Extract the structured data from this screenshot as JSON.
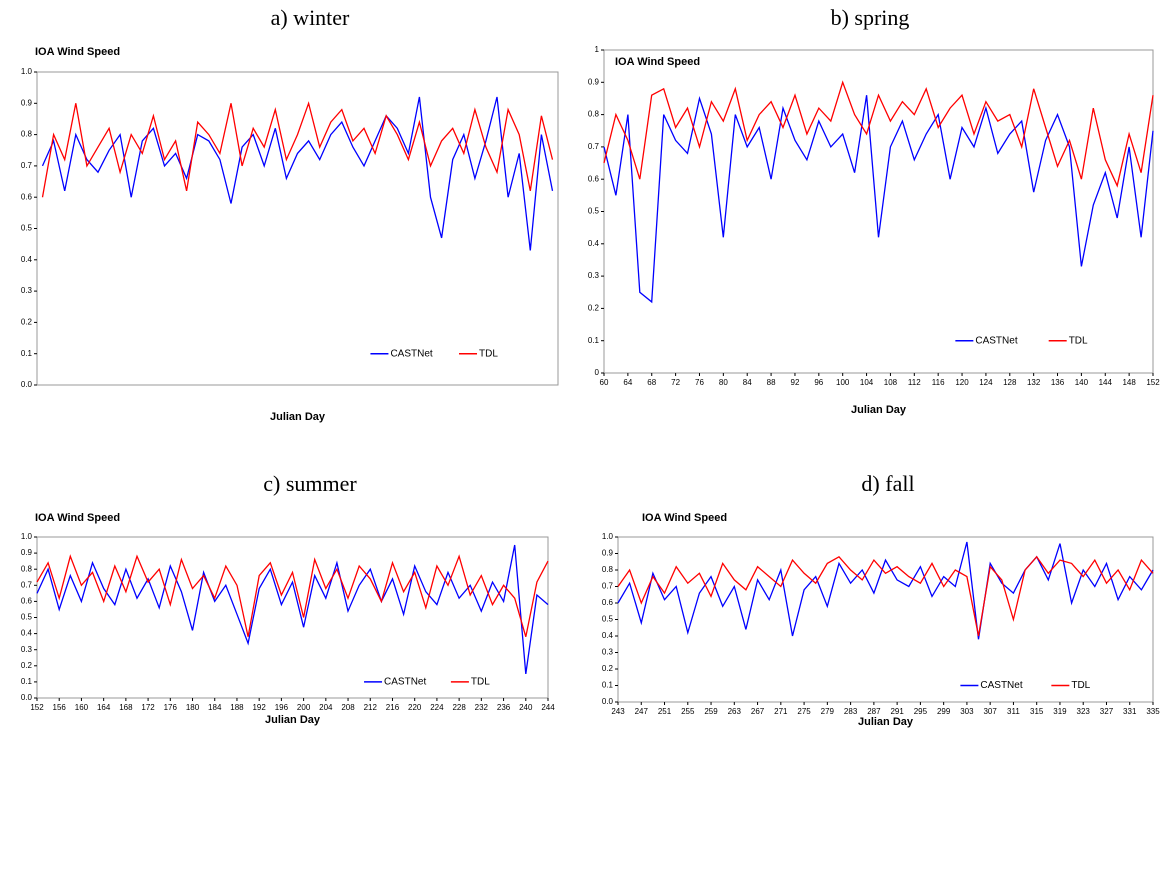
{
  "chart_data": [
    {
      "type": "line",
      "caption": "a) winter",
      "title": "IOA Wind Speed",
      "x_label": "Julian Day",
      "ylim": [
        0,
        1
      ],
      "yticks": [
        {
          "value": 0,
          "label": "0.0"
        },
        0.1,
        0.2,
        0.3,
        0.4,
        0.5,
        0.6,
        0.7,
        0.8,
        0.9,
        {
          "value": 1,
          "label": "1.0"
        }
      ],
      "legend": "lower right",
      "grid": false,
      "series": [
        {
          "name": "CASTNet",
          "color": "#0000ff",
          "values": [
            0.7,
            0.78,
            0.62,
            0.8,
            0.72,
            0.68,
            0.75,
            0.8,
            0.6,
            0.78,
            0.82,
            0.7,
            0.74,
            0.66,
            0.8,
            0.78,
            0.72,
            0.58,
            0.76,
            0.8,
            0.7,
            0.82,
            0.66,
            0.74,
            0.78,
            0.72,
            0.8,
            0.84,
            0.76,
            0.7,
            0.78,
            0.86,
            0.82,
            0.74,
            0.92,
            0.6,
            0.47,
            0.72,
            0.8,
            0.66,
            0.78,
            0.92,
            0.6,
            0.74,
            0.43,
            0.8,
            0.62
          ]
        },
        {
          "name": "TDL",
          "color": "#ff0000",
          "values": [
            0.6,
            0.8,
            0.72,
            0.9,
            0.7,
            0.76,
            0.82,
            0.68,
            0.8,
            0.74,
            0.86,
            0.72,
            0.78,
            0.62,
            0.84,
            0.8,
            0.74,
            0.9,
            0.7,
            0.82,
            0.76,
            0.88,
            0.72,
            0.8,
            0.9,
            0.76,
            0.84,
            0.88,
            0.78,
            0.82,
            0.74,
            0.86,
            0.8,
            0.72,
            0.84,
            0.7,
            0.78,
            0.82,
            0.74,
            0.88,
            0.76,
            0.68,
            0.88,
            0.8,
            0.62,
            0.86,
            0.72
          ]
        }
      ]
    },
    {
      "type": "line",
      "caption": "b) spring",
      "title": "IOA Wind Speed",
      "x_label": "Julian Day",
      "ylim": [
        0,
        1
      ],
      "yticks": [
        0,
        0.1,
        0.2,
        0.3,
        0.4,
        0.5,
        0.6,
        0.7,
        0.8,
        0.9,
        1
      ],
      "xlim": [
        60,
        152
      ],
      "xticks": [
        60,
        64,
        68,
        72,
        76,
        80,
        84,
        88,
        92,
        96,
        100,
        104,
        108,
        112,
        116,
        120,
        124,
        128,
        132,
        136,
        140,
        144,
        148,
        152
      ],
      "legend": "lower right",
      "grid": false,
      "x": [
        60,
        62,
        64,
        66,
        68,
        70,
        72,
        74,
        76,
        78,
        80,
        82,
        84,
        86,
        88,
        90,
        92,
        94,
        96,
        98,
        100,
        102,
        104,
        106,
        108,
        110,
        112,
        114,
        116,
        118,
        120,
        122,
        124,
        126,
        128,
        130,
        132,
        134,
        136,
        138,
        140,
        142,
        144,
        146,
        148,
        150,
        152
      ],
      "series": [
        {
          "name": "CASTNet",
          "color": "#0000ff",
          "values": [
            0.7,
            0.55,
            0.8,
            0.25,
            0.22,
            0.8,
            0.72,
            0.68,
            0.85,
            0.74,
            0.42,
            0.8,
            0.7,
            0.76,
            0.6,
            0.82,
            0.72,
            0.66,
            0.78,
            0.7,
            0.74,
            0.62,
            0.86,
            0.42,
            0.7,
            0.78,
            0.66,
            0.74,
            0.8,
            0.6,
            0.76,
            0.7,
            0.82,
            0.68,
            0.74,
            0.78,
            0.56,
            0.72,
            0.8,
            0.7,
            0.33,
            0.52,
            0.62,
            0.48,
            0.7,
            0.42,
            0.75
          ]
        },
        {
          "name": "TDL",
          "color": "#ff0000",
          "values": [
            0.65,
            0.8,
            0.72,
            0.6,
            0.86,
            0.88,
            0.76,
            0.82,
            0.7,
            0.84,
            0.78,
            0.88,
            0.72,
            0.8,
            0.84,
            0.76,
            0.86,
            0.74,
            0.82,
            0.78,
            0.9,
            0.8,
            0.74,
            0.86,
            0.78,
            0.84,
            0.8,
            0.88,
            0.76,
            0.82,
            0.86,
            0.74,
            0.84,
            0.78,
            0.8,
            0.7,
            0.88,
            0.76,
            0.64,
            0.72,
            0.6,
            0.82,
            0.66,
            0.58,
            0.74,
            0.62,
            0.86
          ]
        }
      ]
    },
    {
      "type": "line",
      "caption": "c) summer",
      "title": "IOA Wind Speed",
      "x_label": "Julian Day",
      "ylim": [
        0,
        1
      ],
      "yticks": [
        {
          "value": 0,
          "label": "0.0"
        },
        0.1,
        0.2,
        0.3,
        0.4,
        0.5,
        0.6,
        0.7,
        0.8,
        0.9,
        {
          "value": 1,
          "label": "1.0"
        }
      ],
      "xlim": [
        152,
        244
      ],
      "xticks": [
        152,
        156,
        160,
        164,
        168,
        172,
        176,
        180,
        184,
        188,
        192,
        196,
        200,
        204,
        208,
        212,
        216,
        220,
        224,
        228,
        232,
        236,
        240,
        244
      ],
      "legend": "lower right",
      "grid": false,
      "x": [
        152,
        154,
        156,
        158,
        160,
        162,
        164,
        166,
        168,
        170,
        172,
        174,
        176,
        178,
        180,
        182,
        184,
        186,
        188,
        190,
        192,
        194,
        196,
        198,
        200,
        202,
        204,
        206,
        208,
        210,
        212,
        214,
        216,
        218,
        220,
        222,
        224,
        226,
        228,
        230,
        232,
        234,
        236,
        238,
        240,
        242,
        244
      ],
      "series": [
        {
          "name": "CASTNet",
          "color": "#0000ff",
          "values": [
            0.65,
            0.8,
            0.55,
            0.76,
            0.6,
            0.84,
            0.68,
            0.58,
            0.8,
            0.62,
            0.74,
            0.56,
            0.82,
            0.66,
            0.42,
            0.78,
            0.6,
            0.7,
            0.52,
            0.34,
            0.68,
            0.8,
            0.58,
            0.72,
            0.44,
            0.76,
            0.62,
            0.84,
            0.54,
            0.7,
            0.8,
            0.6,
            0.74,
            0.52,
            0.82,
            0.66,
            0.58,
            0.78,
            0.62,
            0.7,
            0.54,
            0.72,
            0.6,
            0.95,
            0.15,
            0.64,
            0.58
          ]
        },
        {
          "name": "TDL",
          "color": "#ff0000",
          "values": [
            0.72,
            0.84,
            0.62,
            0.88,
            0.7,
            0.78,
            0.6,
            0.82,
            0.66,
            0.88,
            0.72,
            0.8,
            0.58,
            0.86,
            0.68,
            0.76,
            0.62,
            0.82,
            0.7,
            0.38,
            0.76,
            0.84,
            0.64,
            0.78,
            0.5,
            0.86,
            0.68,
            0.8,
            0.62,
            0.82,
            0.74,
            0.6,
            0.84,
            0.66,
            0.78,
            0.56,
            0.82,
            0.7,
            0.88,
            0.64,
            0.76,
            0.58,
            0.7,
            0.62,
            0.38,
            0.72,
            0.85
          ]
        }
      ]
    },
    {
      "type": "line",
      "caption": "d) fall",
      "title": "IOA Wind Speed",
      "x_label": "Julian Day",
      "ylim": [
        0,
        1
      ],
      "yticks": [
        {
          "value": 0,
          "label": "0.0"
        },
        0.1,
        0.2,
        0.3,
        0.4,
        0.5,
        0.6,
        0.7,
        0.8,
        0.9,
        {
          "value": 1,
          "label": "1.0"
        }
      ],
      "xlim": [
        243,
        335
      ],
      "xticks": [
        243,
        247,
        251,
        255,
        259,
        263,
        267,
        271,
        275,
        279,
        283,
        287,
        291,
        295,
        299,
        303,
        307,
        311,
        315,
        319,
        323,
        327,
        331,
        335
      ],
      "legend": "lower right",
      "grid": false,
      "x": [
        243,
        245,
        247,
        249,
        251,
        253,
        255,
        257,
        259,
        261,
        263,
        265,
        267,
        269,
        271,
        273,
        275,
        277,
        279,
        281,
        283,
        285,
        287,
        289,
        291,
        293,
        295,
        297,
        299,
        301,
        303,
        305,
        307,
        309,
        311,
        313,
        315,
        317,
        319,
        321,
        323,
        325,
        327,
        329,
        331,
        333,
        335
      ],
      "series": [
        {
          "name": "CASTNet",
          "color": "#0000ff",
          "values": [
            0.6,
            0.72,
            0.48,
            0.78,
            0.62,
            0.7,
            0.42,
            0.66,
            0.76,
            0.58,
            0.7,
            0.44,
            0.74,
            0.62,
            0.8,
            0.4,
            0.68,
            0.76,
            0.58,
            0.84,
            0.72,
            0.8,
            0.66,
            0.86,
            0.74,
            0.7,
            0.82,
            0.64,
            0.76,
            0.7,
            0.97,
            0.38,
            0.84,
            0.72,
            0.66,
            0.8,
            0.88,
            0.74,
            0.96,
            0.6,
            0.8,
            0.7,
            0.84,
            0.62,
            0.76,
            0.68,
            0.8
          ]
        },
        {
          "name": "TDL",
          "color": "#ff0000",
          "values": [
            0.7,
            0.8,
            0.6,
            0.76,
            0.66,
            0.82,
            0.72,
            0.78,
            0.64,
            0.84,
            0.74,
            0.68,
            0.82,
            0.76,
            0.7,
            0.86,
            0.78,
            0.72,
            0.84,
            0.88,
            0.8,
            0.74,
            0.86,
            0.78,
            0.82,
            0.76,
            0.72,
            0.84,
            0.7,
            0.8,
            0.76,
            0.4,
            0.82,
            0.74,
            0.5,
            0.8,
            0.88,
            0.78,
            0.86,
            0.84,
            0.76,
            0.86,
            0.72,
            0.8,
            0.68,
            0.86,
            0.78
          ]
        }
      ]
    }
  ]
}
